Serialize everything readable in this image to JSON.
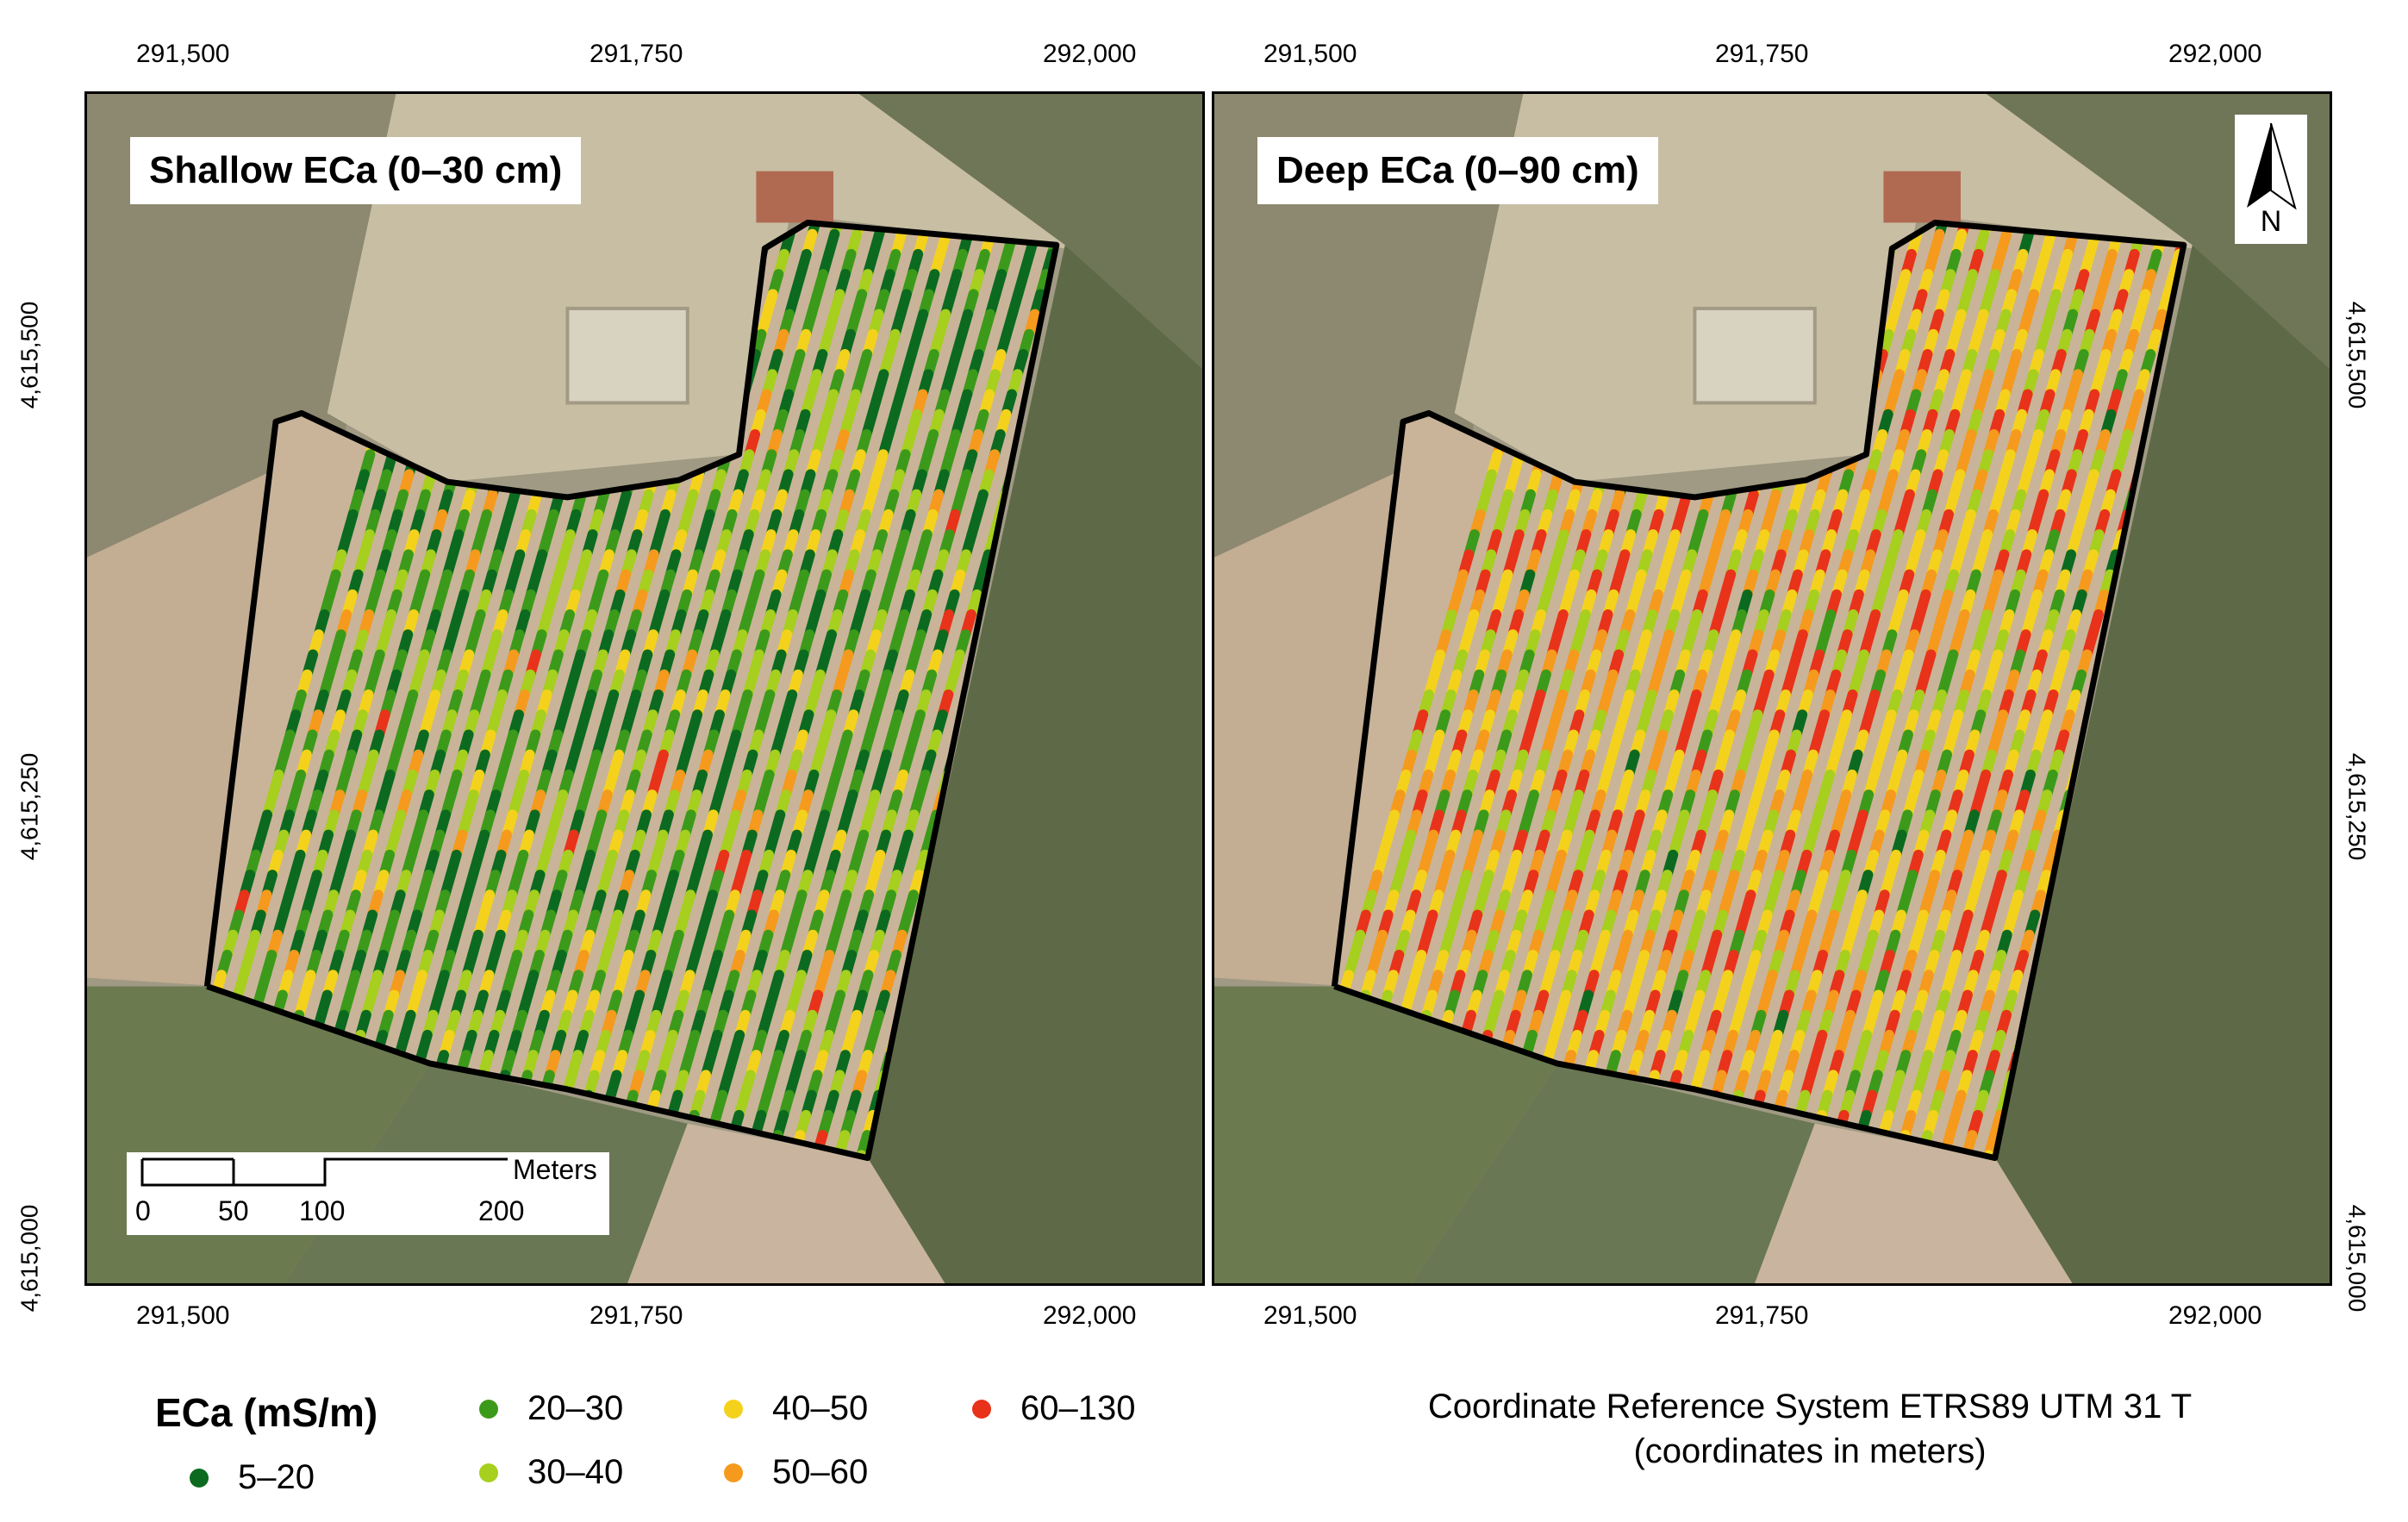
{
  "maps": [
    {
      "title": "Shallow ECa (0–30 cm)",
      "scheme": "shallow"
    },
    {
      "title": "Deep ECa (0–90 cm)",
      "scheme": "deep"
    }
  ],
  "axes": {
    "x_ticks": [
      "291,500",
      "291,750",
      "292,000"
    ],
    "y_ticks": [
      "4,615,500",
      "4,615,250",
      "4,615,000"
    ]
  },
  "scale_bar": {
    "labels": [
      "0",
      "50",
      "100",
      "200"
    ],
    "unit": "Meters"
  },
  "north_arrow": {
    "label": "N"
  },
  "legend": {
    "title": "ECa (mS/m)",
    "classes": [
      {
        "label": "5–20",
        "color": "#0b6a1f"
      },
      {
        "label": "20–30",
        "color": "#3c9a1a"
      },
      {
        "label": "30–40",
        "color": "#a6cf1e"
      },
      {
        "label": "40–50",
        "color": "#f4d21c"
      },
      {
        "label": "50–60",
        "color": "#f59a1c"
      },
      {
        "label": "60–130",
        "color": "#e8321a"
      }
    ]
  },
  "crs": {
    "line1": "Coordinate Reference System ETRS89 UTM 31 T",
    "line2": "(coordinates in meters)"
  }
}
